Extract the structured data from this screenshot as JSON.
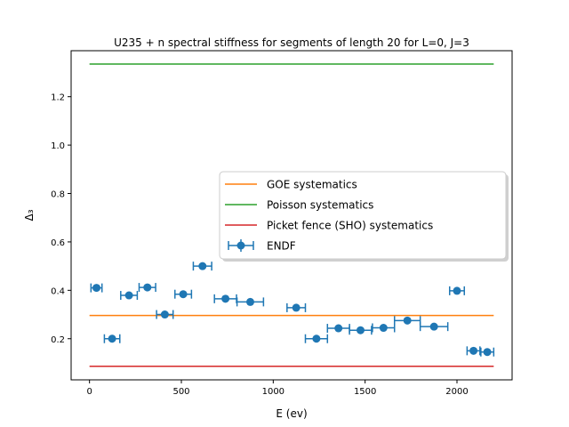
{
  "chart_data": {
    "type": "scatter",
    "title": "U235 + n  spectral stiffness for segments of length 20 for L=0, J=3",
    "xlabel": "E (ev)",
    "ylabel": "Δ₃",
    "xlim": [
      -100,
      2300
    ],
    "ylim": [
      0.03,
      1.39
    ],
    "x_ticks": [
      0,
      500,
      1000,
      1500,
      2000
    ],
    "x_tick_labels": [
      "0",
      "500",
      "1000",
      "1500",
      "2000"
    ],
    "y_ticks": [
      0.2,
      0.4,
      0.6,
      0.8,
      1.0,
      1.2
    ],
    "y_tick_labels": [
      "0.2",
      "0.4",
      "0.6",
      "0.8",
      "1.0",
      "1.2"
    ],
    "grid": false,
    "legend_position": "center-right",
    "lines": [
      {
        "name": "GOE systematics",
        "color": "#ff7f0e",
        "x": [
          0,
          2200
        ],
        "y": [
          0.296,
          0.296
        ]
      },
      {
        "name": "Poisson systematics",
        "color": "#2ca02c",
        "x": [
          0,
          2200
        ],
        "y": [
          1.335,
          1.335
        ]
      },
      {
        "name": "Picket fence (SHO) systematics",
        "color": "#d62728",
        "x": [
          0,
          2200
        ],
        "y": [
          0.086,
          0.086
        ]
      }
    ],
    "series": [
      {
        "name": "ENDF",
        "color": "#1f77b4",
        "points": [
          {
            "x": 38,
            "y": 0.41,
            "xerr": 30
          },
          {
            "x": 123,
            "y": 0.2,
            "xerr": 42
          },
          {
            "x": 215,
            "y": 0.379,
            "xerr": 45
          },
          {
            "x": 315,
            "y": 0.412,
            "xerr": 45
          },
          {
            "x": 410,
            "y": 0.3,
            "xerr": 45
          },
          {
            "x": 510,
            "y": 0.384,
            "xerr": 45
          },
          {
            "x": 615,
            "y": 0.5,
            "xerr": 50
          },
          {
            "x": 740,
            "y": 0.365,
            "xerr": 60
          },
          {
            "x": 875,
            "y": 0.352,
            "xerr": 72
          },
          {
            "x": 1125,
            "y": 0.328,
            "xerr": 50
          },
          {
            "x": 1235,
            "y": 0.2,
            "xerr": 60
          },
          {
            "x": 1355,
            "y": 0.243,
            "xerr": 60
          },
          {
            "x": 1475,
            "y": 0.235,
            "xerr": 60
          },
          {
            "x": 1600,
            "y": 0.245,
            "xerr": 60
          },
          {
            "x": 1730,
            "y": 0.275,
            "xerr": 70
          },
          {
            "x": 1875,
            "y": 0.25,
            "xerr": 75
          },
          {
            "x": 2000,
            "y": 0.398,
            "xerr": 40
          },
          {
            "x": 2090,
            "y": 0.15,
            "xerr": 35
          },
          {
            "x": 2165,
            "y": 0.145,
            "xerr": 35
          }
        ]
      }
    ]
  }
}
